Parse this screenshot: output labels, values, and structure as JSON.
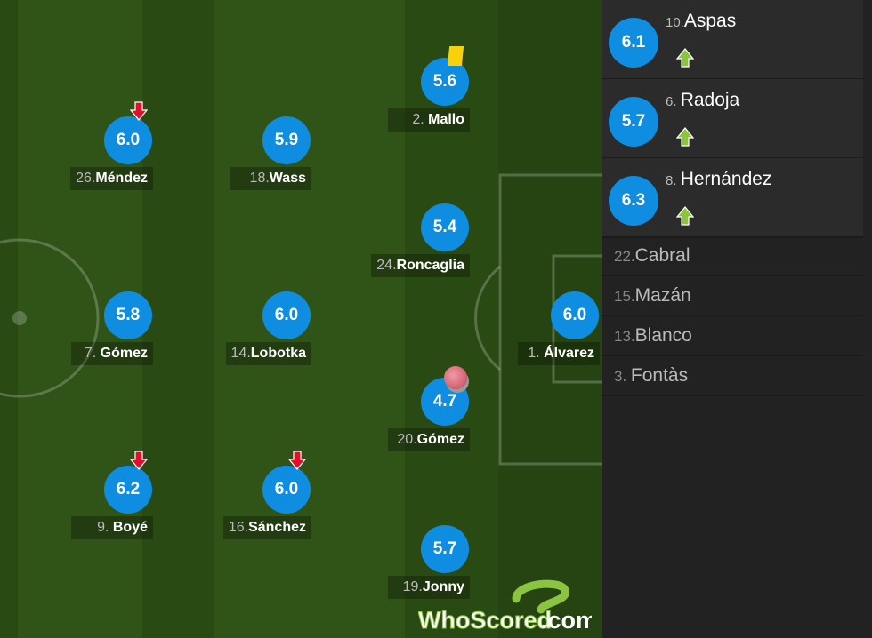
{
  "colors": {
    "rating": "#0f8de0",
    "yellow_card": "#f7d20a",
    "sub_off": "#e0102a",
    "sub_on": "#8bc43f"
  },
  "pitch_players": [
    {
      "num": "26.",
      "name": "Méndez",
      "rating": "6.0",
      "icon": "sub-off-arrow-icon"
    },
    {
      "num": "18.",
      "name": "Wass",
      "rating": "5.9"
    },
    {
      "num": "2. ",
      "name": "Mallo",
      "rating": "5.6",
      "icon": "yellow-card-icon"
    },
    {
      "num": "24.",
      "name": "Roncaglia",
      "rating": "5.4"
    },
    {
      "num": "7. ",
      "name": "Gómez",
      "rating": "5.8"
    },
    {
      "num": "14.",
      "name": "Lobotka",
      "rating": "6.0"
    },
    {
      "num": "1. ",
      "name": "Álvarez",
      "rating": "6.0"
    },
    {
      "num": "20.",
      "name": "Gómez",
      "rating": "4.7",
      "icon": "own-goal-ball-icon"
    },
    {
      "num": "9. ",
      "name": "Boyé",
      "rating": "6.2",
      "icon": "sub-off-arrow-icon"
    },
    {
      "num": "16.",
      "name": "Sánchez",
      "rating": "6.0",
      "icon": "sub-off-arrow-icon"
    },
    {
      "num": "19.",
      "name": "Jonny",
      "rating": "5.7"
    }
  ],
  "substitutes": [
    {
      "num": "10.",
      "name": "Aspas",
      "rating": "6.1"
    },
    {
      "num": "6. ",
      "name": "Radoja",
      "rating": "5.7"
    },
    {
      "num": "8. ",
      "name": "Hernández",
      "rating": "6.3"
    }
  ],
  "bench": [
    {
      "num": "22.",
      "name": "Cabral"
    },
    {
      "num": "15.",
      "name": "Mazán"
    },
    {
      "num": "13.",
      "name": "Blanco"
    },
    {
      "num": "3. ",
      "name": "Fontàs"
    }
  ],
  "logo": "WhoScored.com"
}
